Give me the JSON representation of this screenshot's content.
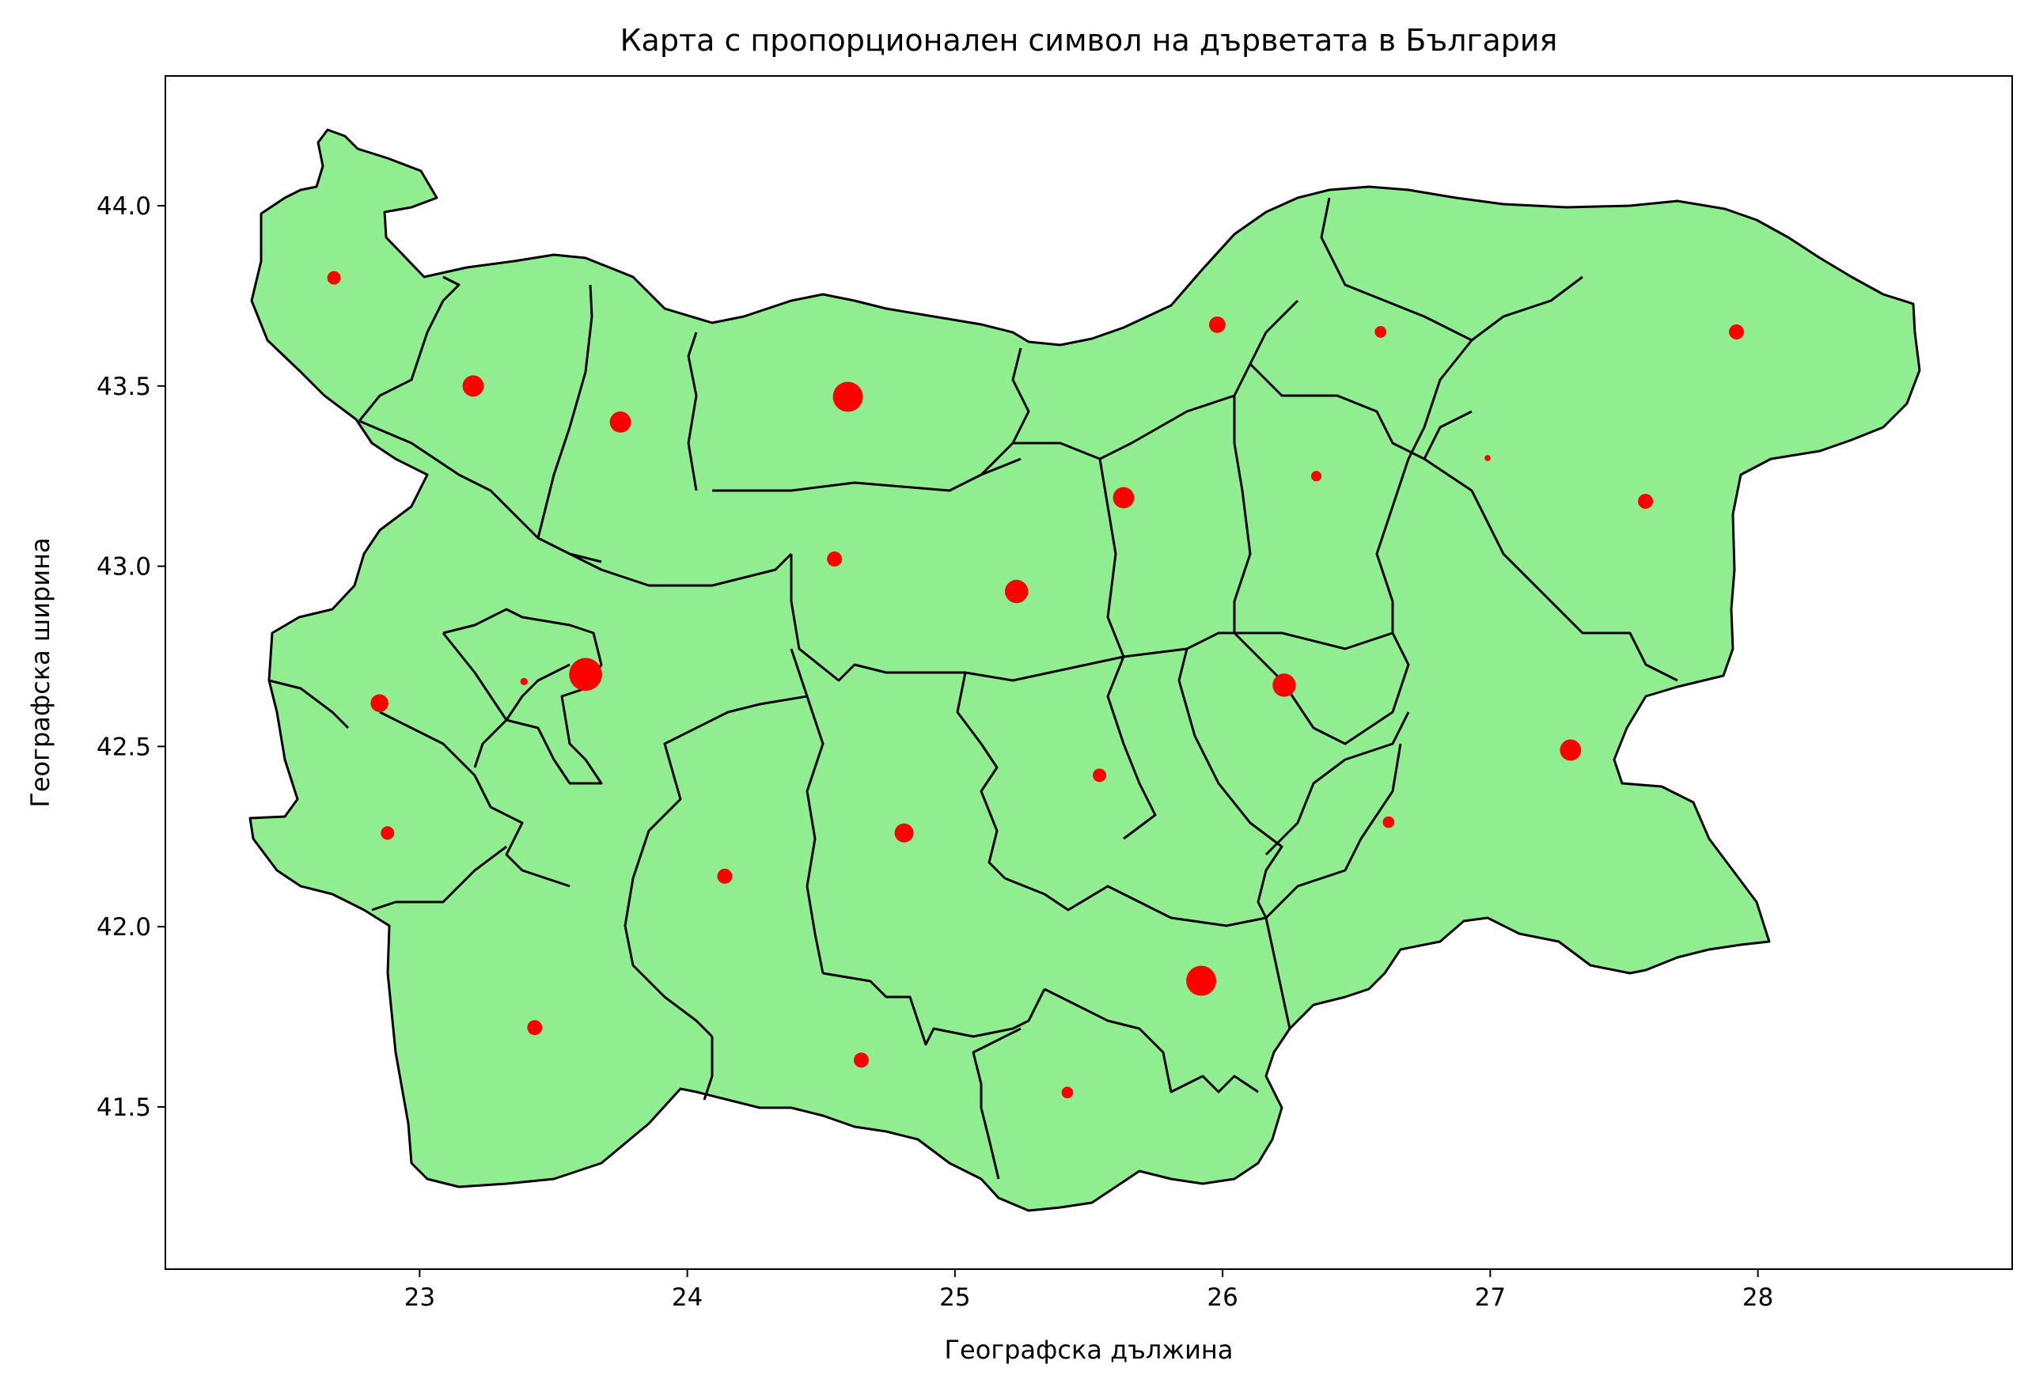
{
  "chart_data": {
    "type": "map",
    "title": "Карта с пропорционален символ на дърветата в България",
    "xlabel": "Географска дължина",
    "ylabel": "Географска ширина",
    "xlim": [
      22.05,
      28.95
    ],
    "ylim": [
      41.05,
      44.36
    ],
    "xticks": [
      "23",
      "24",
      "25",
      "26",
      "27",
      "28"
    ],
    "yticks": [
      "41.5",
      "42.0",
      "42.5",
      "43.0",
      "43.5",
      "44.0"
    ],
    "colors": {
      "region_fill": "#90ee90",
      "region_edge": "#000000",
      "marker": "#ff0000"
    },
    "points": [
      {
        "lon": 22.68,
        "lat": 43.8,
        "size": 2
      },
      {
        "lon": 23.2,
        "lat": 43.5,
        "size": 5
      },
      {
        "lon": 23.75,
        "lat": 43.4,
        "size": 5
      },
      {
        "lon": 24.6,
        "lat": 43.47,
        "size": 10
      },
      {
        "lon": 25.98,
        "lat": 43.67,
        "size": 3
      },
      {
        "lon": 26.59,
        "lat": 43.65,
        "size": 1.5
      },
      {
        "lon": 27.92,
        "lat": 43.65,
        "size": 2.5
      },
      {
        "lon": 26.35,
        "lat": 43.25,
        "size": 1.2
      },
      {
        "lon": 26.99,
        "lat": 43.3,
        "size": 0.4
      },
      {
        "lon": 27.58,
        "lat": 43.18,
        "size": 2.5
      },
      {
        "lon": 25.63,
        "lat": 43.19,
        "size": 5
      },
      {
        "lon": 24.55,
        "lat": 43.02,
        "size": 2.5
      },
      {
        "lon": 25.23,
        "lat": 42.93,
        "size": 6
      },
      {
        "lon": 23.62,
        "lat": 42.7,
        "size": 12
      },
      {
        "lon": 23.39,
        "lat": 42.68,
        "size": 0.6
      },
      {
        "lon": 22.85,
        "lat": 42.62,
        "size": 3.5
      },
      {
        "lon": 26.23,
        "lat": 42.67,
        "size": 6
      },
      {
        "lon": 27.3,
        "lat": 42.49,
        "size": 5
      },
      {
        "lon": 25.54,
        "lat": 42.42,
        "size": 2
      },
      {
        "lon": 26.62,
        "lat": 42.29,
        "size": 1.5
      },
      {
        "lon": 22.88,
        "lat": 42.26,
        "size": 2
      },
      {
        "lon": 24.81,
        "lat": 42.26,
        "size": 4
      },
      {
        "lon": 24.14,
        "lat": 42.14,
        "size": 2.5
      },
      {
        "lon": 25.92,
        "lat": 41.85,
        "size": 10
      },
      {
        "lon": 23.43,
        "lat": 41.72,
        "size": 2.5
      },
      {
        "lon": 24.65,
        "lat": 41.63,
        "size": 2.5
      },
      {
        "lon": 25.42,
        "lat": 41.54,
        "size": 1.5
      }
    ]
  }
}
